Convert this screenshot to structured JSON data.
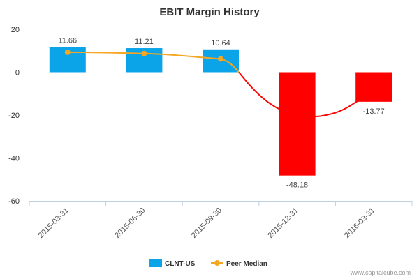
{
  "chart_data": {
    "type": "bar",
    "title": "EBIT Margin History",
    "categories": [
      "2015-03-31",
      "2015-06-30",
      "2015-09-30",
      "2015-12-31",
      "2016-03-31"
    ],
    "series": [
      {
        "name": "CLNT-US",
        "type": "bar",
        "values": [
          11.66,
          11.21,
          10.64,
          -48.18,
          -13.77
        ],
        "data_labels": [
          "11.66",
          "11.21",
          "10.64",
          "-48.18",
          "-13.77"
        ],
        "positive_color": "#0ca4e8",
        "negative_color": "#ff0000"
      },
      {
        "name": "Peer Median",
        "type": "line",
        "values": [
          9.3,
          8.7,
          6.2,
          null,
          null
        ],
        "marker_color": "#f5a623",
        "line_color_above_zero": "#f5a623",
        "line_color_below_zero": "#ff0000",
        "extra_points": [
          {
            "x_position": 3.3,
            "y": -20.5
          },
          {
            "x_position": 4.0,
            "y": -13.77
          }
        ]
      }
    ],
    "yticks": [
      "20",
      "0",
      "-20",
      "-40",
      "-60"
    ],
    "ytick_values": [
      20,
      0,
      -20,
      -40,
      -60
    ],
    "ylim": [
      -60,
      20
    ],
    "grid": false,
    "legend_position": "bottom-center",
    "credit": "www.capitalcube.com"
  }
}
